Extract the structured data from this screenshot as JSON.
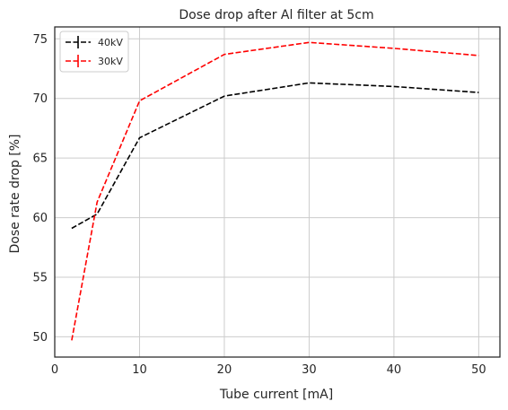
{
  "chart_data": {
    "type": "line",
    "title": "Dose drop after Al filter at 5cm",
    "xlabel": "Tube current [mA]",
    "ylabel": "Dose rate drop [%]",
    "xlim": [
      0,
      52.5
    ],
    "ylim": [
      48.3,
      76.0
    ],
    "xticks": [
      0,
      10,
      20,
      30,
      40,
      50
    ],
    "yticks": [
      50,
      55,
      60,
      65,
      70,
      75
    ],
    "grid": true,
    "legend_position": "top-left",
    "x": [
      2,
      5,
      10,
      20,
      30,
      40,
      50
    ],
    "series": [
      {
        "name": "40kV",
        "color": "#000000",
        "values": [
          59.1,
          60.3,
          66.7,
          70.2,
          71.3,
          71.0,
          70.5
        ]
      },
      {
        "name": "30kV",
        "color": "#ff0000",
        "values": [
          49.7,
          61.3,
          69.8,
          73.7,
          74.7,
          74.2,
          73.6
        ]
      }
    ]
  }
}
